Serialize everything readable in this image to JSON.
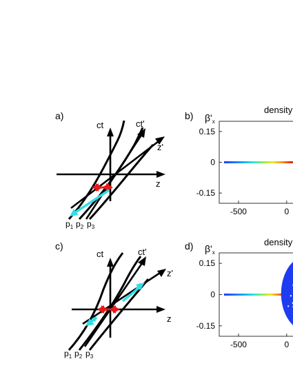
{
  "panels": {
    "a": {
      "label": "a)",
      "axis_ct": "ct",
      "axis_ctp": "ct'",
      "axis_zp": "z'",
      "axis_z": "z",
      "p_letter": "p",
      "p1": "1",
      "p2": "2",
      "p3": "3"
    },
    "b": {
      "label": "b)",
      "ylabel_main": "β'",
      "ylabel_sub": "x",
      "title": "density"
    },
    "c": {
      "label": "c)",
      "axis_ct": "ct",
      "axis_ctp": "ct'",
      "axis_zp": "z'",
      "axis_z": "z",
      "p_letter": "p",
      "p1": "1",
      "p2": "2",
      "p3": "3"
    },
    "d": {
      "label": "d)",
      "ylabel_main": "β'",
      "ylabel_sub": "x",
      "title": "density"
    }
  },
  "colors": {
    "arrow_red": "#e51b1b",
    "arrow_cyan": "#33dde6",
    "line_black": "#000000",
    "blob_blue": "#1e3cf0"
  },
  "chart_data": [
    {
      "type": "scatter",
      "panel": "b",
      "title": "density",
      "xlabel": "",
      "ylabel": "β'x",
      "xticks": [
        -500,
        0
      ],
      "xtick_labels": [
        "-500",
        "0"
      ],
      "yticks": [
        0.15,
        0,
        -0.15
      ],
      "ytick_labels": [
        "0.15",
        "0",
        "-0.15"
      ],
      "xlim": [
        -700,
        230
      ],
      "ylim": [
        -0.2,
        0.2
      ],
      "series": [
        {
          "x": [
            -650,
            200
          ],
          "y": [
            0,
            0
          ],
          "color_map": "jet"
        }
      ]
    },
    {
      "type": "scatter",
      "panel": "d",
      "title": "density",
      "xlabel": "",
      "ylabel": "β'x",
      "xticks": [
        -500,
        0
      ],
      "xtick_labels": [
        "-500",
        "0"
      ],
      "yticks": [
        0.15,
        0,
        -0.15
      ],
      "ytick_labels": [
        "0.15",
        "0",
        "-0.15"
      ],
      "xlim": [
        -700,
        230
      ],
      "ylim": [
        -0.2,
        0.2
      ],
      "series": [
        {
          "x": [
            -650,
            -30
          ],
          "y": [
            0,
            0
          ],
          "color_map": "jet"
        },
        {
          "x": [
            -30,
            200
          ],
          "y": [
            -0.18,
            0.19
          ],
          "color": "#1e3cf0",
          "note": ""
        }
      ]
    }
  ]
}
